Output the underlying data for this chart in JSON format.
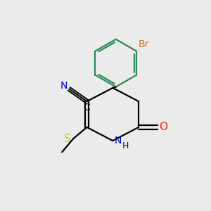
{
  "bg_color": "#ebebeb",
  "bond_color": "#000000",
  "ring_bond_color": "#2e8b57",
  "atom_colors": {
    "N": "#0000cc",
    "O": "#ff2200",
    "S": "#cccc00",
    "Br": "#cc7722",
    "C_label": "#000000",
    "CN_N": "#0000cc"
  },
  "font_size": 10
}
